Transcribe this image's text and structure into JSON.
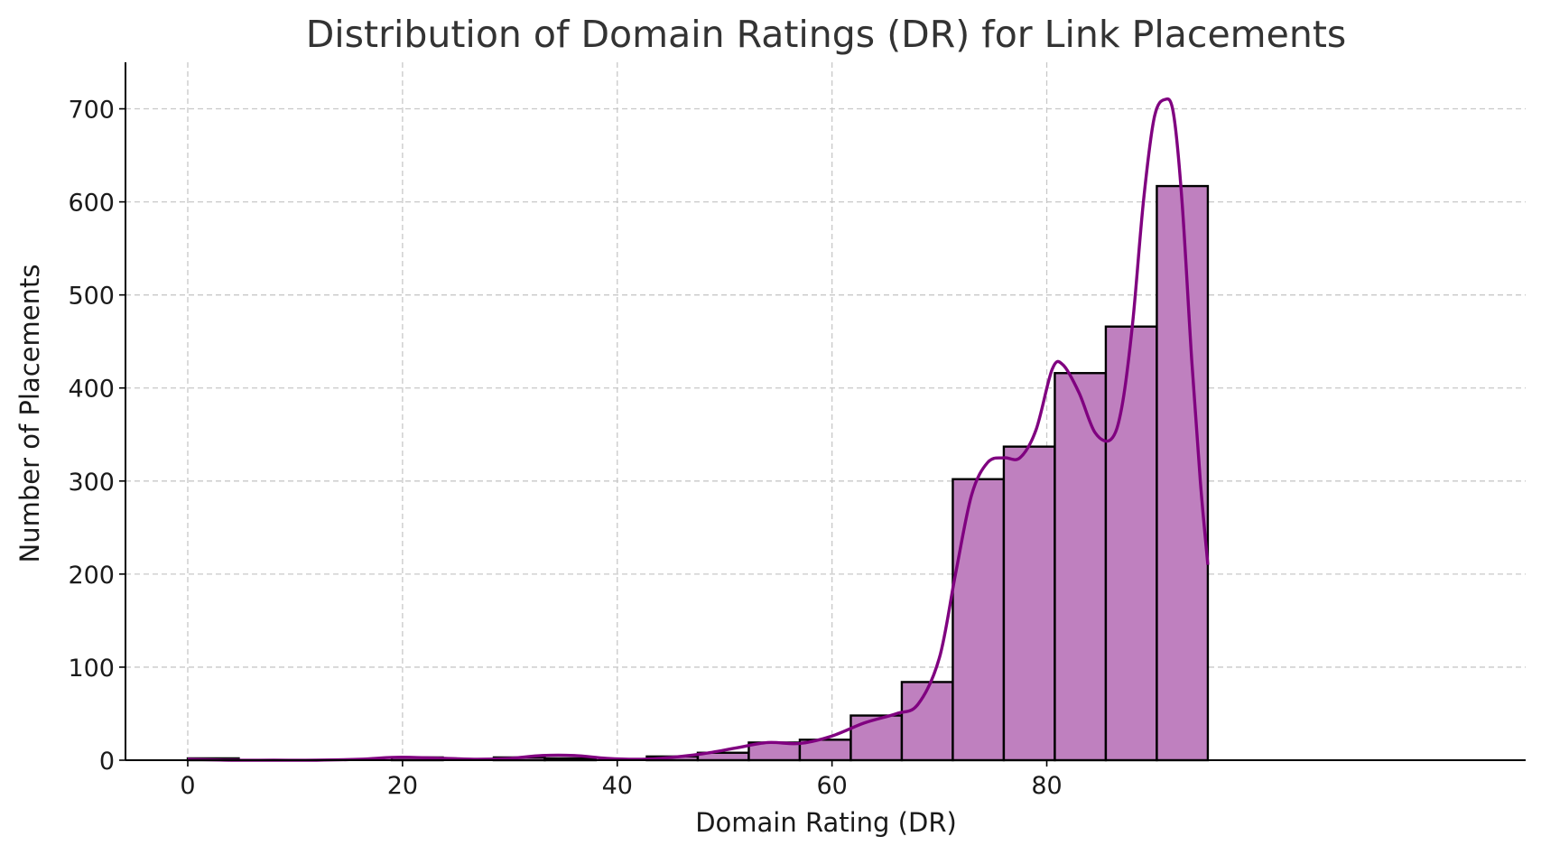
{
  "chart_data": {
    "type": "bar",
    "title": "Distribution of Domain Ratings (DR) for Link Placements",
    "xlabel": "Domain Rating (DR)",
    "ylabel": "Number of Placements",
    "xlim": [
      -5.8,
      124.6
    ],
    "ylim": [
      0,
      750
    ],
    "xticks": [
      0,
      20,
      40,
      60,
      80
    ],
    "yticks": [
      0,
      100,
      200,
      300,
      400,
      500,
      600,
      700
    ],
    "grid": true,
    "bin_edges": [
      0,
      4.75,
      9.5,
      14.25,
      19,
      23.75,
      28.5,
      33.25,
      38,
      42.75,
      47.5,
      52.25,
      57,
      61.75,
      66.5,
      71.25,
      76,
      80.75,
      85.5,
      90.25,
      95
    ],
    "values": [
      2,
      0,
      0,
      0,
      3,
      0,
      3,
      2,
      0,
      4,
      8,
      19,
      22,
      48,
      84,
      302,
      337,
      416,
      466,
      617
    ],
    "kde_curve": {
      "x": [
        0,
        4,
        8,
        12,
        16,
        19,
        21,
        24,
        27,
        30,
        33,
        36,
        39,
        42,
        45,
        48,
        51,
        54,
        57,
        60,
        63,
        66,
        68,
        70,
        71.5,
        73,
        74.5,
        76,
        77.5,
        79,
        80.5,
        81.5,
        83,
        84.5,
        86,
        87,
        88,
        89,
        90,
        91,
        91.8,
        92.6,
        93.5,
        94.3,
        95
      ],
      "y": [
        1,
        0,
        0,
        0,
        1,
        3,
        3,
        2,
        1,
        2,
        5,
        5,
        2,
        1,
        3,
        7,
        13,
        19,
        18,
        26,
        40,
        50,
        60,
        110,
        200,
        285,
        320,
        325,
        325,
        355,
        420,
        425,
        395,
        352,
        345,
        380,
        470,
        600,
        690,
        710,
        695,
        600,
        430,
        300,
        210
      ]
    },
    "colors": {
      "bar_fill": "#bf80bf",
      "bar_edge": "#000000",
      "kde_line": "#800080"
    }
  }
}
